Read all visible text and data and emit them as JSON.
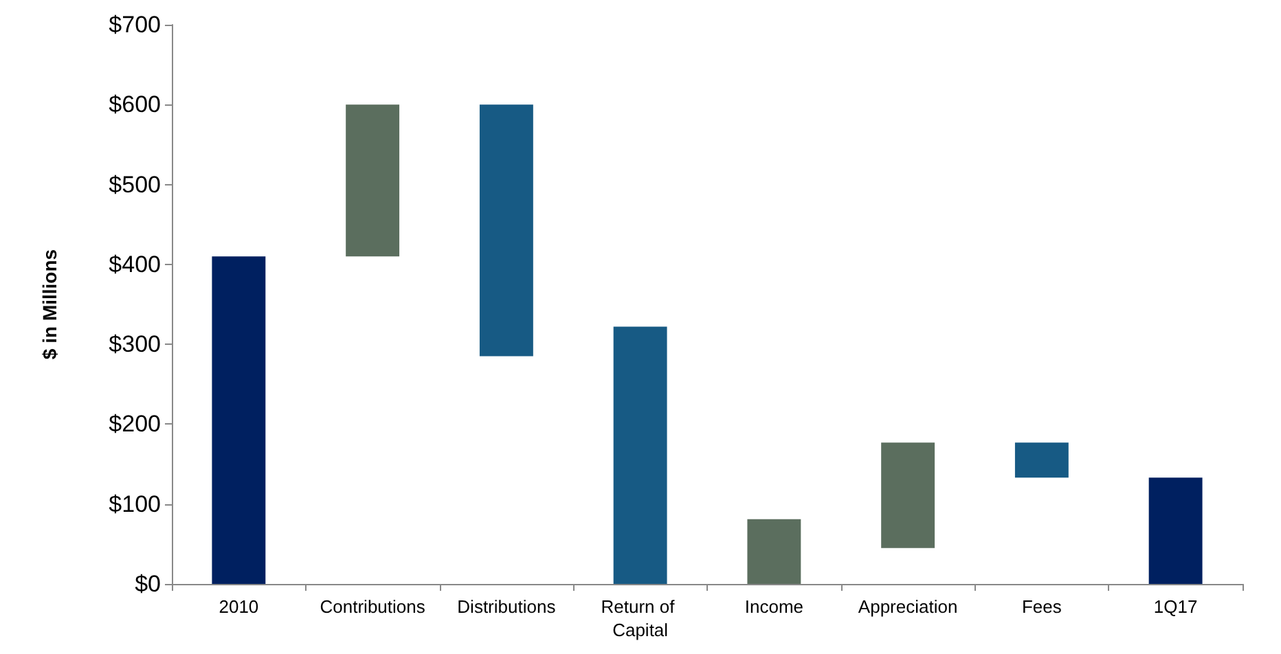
{
  "chart_data": {
    "type": "bar",
    "ylabel": "$ in Millions",
    "categories": [
      "2010",
      "Contributions",
      "Distributions",
      "Return of Capital",
      "Income",
      "Appreciation",
      "Fees",
      "1Q17"
    ],
    "values": [
      410,
      190,
      315,
      322,
      81,
      132,
      44,
      133
    ],
    "base": [
      0,
      410,
      285,
      0,
      0,
      45,
      133,
      0
    ],
    "colors": [
      "#002060",
      "#5b6e5e",
      "#175a84",
      "#175a84",
      "#5b6e5e",
      "#5b6e5e",
      "#175a84",
      "#002060"
    ],
    "ylim": [
      0,
      700
    ],
    "yticks": [
      {
        "value": 0,
        "label": "$0"
      },
      {
        "value": 100,
        "label": "$100"
      },
      {
        "value": 200,
        "label": "$200"
      },
      {
        "value": 300,
        "label": "$300"
      },
      {
        "value": 400,
        "label": "$400"
      },
      {
        "value": 500,
        "label": "$500"
      },
      {
        "value": 600,
        "label": "$600"
      },
      {
        "value": 700,
        "label": "$700"
      }
    ],
    "grid": false
  }
}
